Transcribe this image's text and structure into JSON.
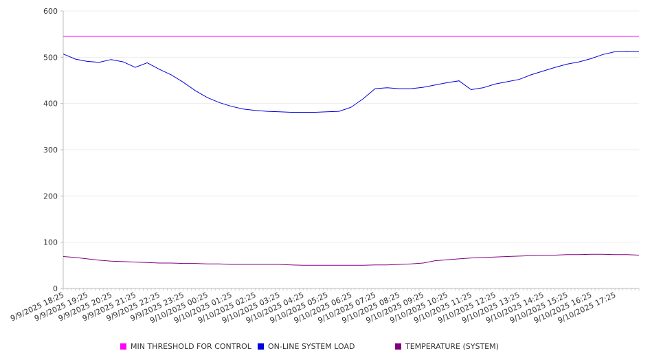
{
  "chart_data": {
    "type": "line",
    "title": "",
    "xlabel": "",
    "ylabel": "",
    "ylim": [
      0,
      600
    ],
    "yticks": [
      "0",
      "100",
      "200",
      "300",
      "400",
      "500",
      "600"
    ],
    "grid": true,
    "legend_position": "bottom",
    "x_tick_labels": [
      "9/9/2025 18:25",
      "9/9/2025 19:25",
      "9/9/2025 20:25",
      "9/9/2025 21:25",
      "9/9/2025 22:25",
      "9/9/2025 23:25",
      "9/10/2025 00:25",
      "9/10/2025 01:25",
      "9/10/2025 02:25",
      "9/10/2025 03:25",
      "9/10/2025 04:25",
      "9/10/2025 05:25",
      "9/10/2025 06:25",
      "9/10/2025 07:25",
      "9/10/2025 08:25",
      "9/10/2025 09:25",
      "9/10/2025 10:25",
      "9/10/2025 11:25",
      "9/10/2025 12:25",
      "9/10/2025 13:25",
      "9/10/2025 14:25",
      "9/10/2025 15:25",
      "9/10/2025 16:25",
      "9/10/2025 17:25"
    ],
    "x_hours": [
      0,
      0.5,
      1,
      1.5,
      2,
      2.5,
      3,
      3.5,
      4,
      4.5,
      5,
      5.5,
      6,
      6.5,
      7,
      7.5,
      8,
      8.5,
      9,
      9.5,
      10,
      10.5,
      11,
      11.5,
      12,
      12.5,
      13,
      13.5,
      14,
      14.5,
      15,
      15.5,
      16,
      16.5,
      17,
      17.5,
      18,
      18.5,
      19,
      19.5,
      20,
      20.5,
      21,
      21.5,
      22,
      22.5,
      23,
      23.5,
      24
    ],
    "series": [
      {
        "name": "MIN THRESHOLD FOR CONTROL",
        "color": "#ff00ff",
        "values": [
          545,
          545,
          545,
          545,
          545,
          545,
          545,
          545,
          545,
          545,
          545,
          545,
          545,
          545,
          545,
          545,
          545,
          545,
          545,
          545,
          545,
          545,
          545,
          545,
          545,
          545,
          545,
          545,
          545,
          545,
          545,
          545,
          545,
          545,
          545,
          545,
          545,
          545,
          545,
          545,
          545,
          545,
          545,
          545,
          545,
          545,
          545,
          545,
          545
        ]
      },
      {
        "name": "ON-LINE SYSTEM LOAD",
        "color": "#0000dd",
        "values": [
          507,
          496,
          491,
          489,
          495,
          490,
          478,
          488,
          474,
          462,
          446,
          428,
          413,
          402,
          394,
          388,
          385,
          383,
          382,
          381,
          381,
          381,
          382,
          383,
          392,
          410,
          432,
          434,
          432,
          432,
          435,
          440,
          445,
          449,
          430,
          434,
          442,
          447,
          452,
          462,
          470,
          478,
          485,
          490,
          497,
          506,
          512,
          513,
          512
        ]
      },
      {
        "name": "TEMPERATURE (SYSTEM)",
        "color": "#800080",
        "values": [
          69,
          67,
          64,
          61,
          59,
          58,
          57,
          56,
          55,
          55,
          54,
          54,
          53,
          53,
          52,
          52,
          52,
          52,
          52,
          51,
          50,
          50,
          50,
          50,
          50,
          50,
          51,
          51,
          52,
          53,
          55,
          60,
          62,
          64,
          66,
          67,
          68,
          69,
          70,
          71,
          72,
          72,
          73,
          73,
          74,
          74,
          73,
          73,
          72
        ]
      }
    ]
  }
}
